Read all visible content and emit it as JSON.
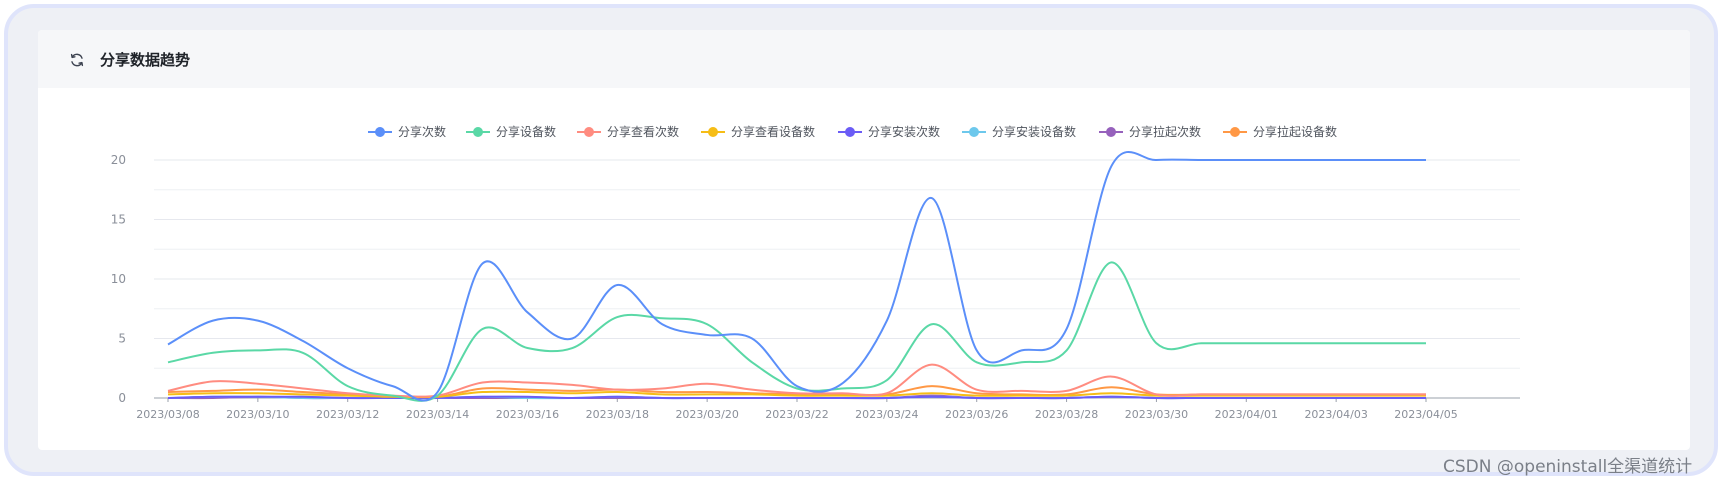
{
  "card": {
    "title": "分享数据趋势",
    "refresh_icon": "refresh-icon"
  },
  "watermark": "CSDN @openinstall全渠道统计",
  "chart_data": {
    "type": "line",
    "title": "分享数据趋势",
    "xlabel": "",
    "ylabel": "",
    "ylim": [
      0,
      20
    ],
    "yticks": [
      0,
      5,
      10,
      15,
      20
    ],
    "grid": true,
    "legend_position": "top-center",
    "x": [
      "2023/03/08",
      "2023/03/09",
      "2023/03/10",
      "2023/03/11",
      "2023/03/12",
      "2023/03/13",
      "2023/03/14",
      "2023/03/15",
      "2023/03/16",
      "2023/03/17",
      "2023/03/18",
      "2023/03/19",
      "2023/03/20",
      "2023/03/21",
      "2023/03/22",
      "2023/03/23",
      "2023/03/24",
      "2023/03/25",
      "2023/03/26",
      "2023/03/27",
      "2023/03/28",
      "2023/03/29",
      "2023/03/30",
      "2023/03/31",
      "2023/04/01",
      "2023/04/02",
      "2023/04/03",
      "2023/04/04",
      "2023/04/05"
    ],
    "x_tick_labels": [
      "2023/03/08",
      "2023/03/10",
      "2023/03/12",
      "2023/03/14",
      "2023/03/16",
      "2023/03/18",
      "2023/03/20",
      "2023/03/22",
      "2023/03/24",
      "2023/03/26",
      "2023/03/28",
      "2023/03/30",
      "2023/04/01",
      "2023/04/03",
      "2023/04/05"
    ],
    "series": [
      {
        "name": "分享次数",
        "color": "#5b8ff9",
        "values": [
          4.5,
          6.5,
          6.5,
          4.8,
          2.5,
          1.0,
          0.5,
          11.3,
          7.2,
          5.0,
          9.5,
          6.2,
          5.3,
          5.0,
          1.0,
          1.2,
          6.5,
          16.8,
          4.0,
          4.0,
          5.8,
          19.5,
          20.0,
          20.0,
          20.0,
          20.0,
          20.0,
          20.0,
          20.0
        ]
      },
      {
        "name": "分享设备数",
        "color": "#5ad8a6",
        "values": [
          3.0,
          3.8,
          4.0,
          3.8,
          1.0,
          0.2,
          0.2,
          5.8,
          4.2,
          4.2,
          6.8,
          6.7,
          6.2,
          3.0,
          0.8,
          0.8,
          1.5,
          6.2,
          3.0,
          3.0,
          4.0,
          11.4,
          4.6,
          4.6,
          4.6,
          4.6,
          4.6,
          4.6,
          4.6
        ]
      },
      {
        "name": "分享查看次数",
        "color": "#ff8c80",
        "values": [
          0.6,
          1.4,
          1.2,
          0.8,
          0.4,
          0.2,
          0.2,
          1.3,
          1.3,
          1.1,
          0.7,
          0.8,
          1.2,
          0.7,
          0.4,
          0.4,
          0.4,
          2.8,
          0.7,
          0.6,
          0.6,
          1.8,
          0.3,
          0.3,
          0.3,
          0.3,
          0.3,
          0.3,
          0.3
        ]
      },
      {
        "name": "分享查看设备数",
        "color": "#f6bd16",
        "values": [
          0.3,
          0.4,
          0.4,
          0.3,
          0.2,
          0.1,
          0.1,
          0.5,
          0.5,
          0.4,
          0.5,
          0.3,
          0.3,
          0.3,
          0.2,
          0.2,
          0.2,
          0.4,
          0.2,
          0.2,
          0.2,
          0.4,
          0.2,
          0.2,
          0.2,
          0.2,
          0.2,
          0.2,
          0.2
        ]
      },
      {
        "name": "分享安装次数",
        "color": "#6b5cf6",
        "values": [
          0.0,
          0.1,
          0.1,
          0.1,
          0.0,
          0.0,
          0.0,
          0.1,
          0.1,
          0.0,
          0.1,
          0.0,
          0.0,
          0.0,
          0.0,
          0.0,
          0.0,
          0.1,
          0.0,
          0.0,
          0.0,
          0.1,
          0.0,
          0.0,
          0.0,
          0.0,
          0.0,
          0.0,
          0.0
        ]
      },
      {
        "name": "分享安装设备数",
        "color": "#6dc8ec",
        "values": [
          0.0,
          0.1,
          0.1,
          0.0,
          0.0,
          0.0,
          0.0,
          0.1,
          0.0,
          0.0,
          0.1,
          0.0,
          0.0,
          0.0,
          0.0,
          0.0,
          0.0,
          0.1,
          0.0,
          0.0,
          0.0,
          0.1,
          0.0,
          0.0,
          0.0,
          0.0,
          0.0,
          0.0,
          0.0
        ]
      },
      {
        "name": "分享拉起次数",
        "color": "#9661bc",
        "values": [
          0.0,
          0.0,
          0.1,
          0.0,
          0.0,
          0.0,
          0.0,
          0.0,
          0.0,
          0.0,
          0.0,
          0.0,
          0.0,
          0.0,
          0.0,
          0.0,
          0.0,
          0.2,
          0.0,
          0.0,
          0.0,
          0.1,
          0.0,
          0.0,
          0.0,
          0.0,
          0.0,
          0.0,
          0.0
        ]
      },
      {
        "name": "分享拉起设备数",
        "color": "#ff9845",
        "values": [
          0.5,
          0.6,
          0.7,
          0.5,
          0.3,
          0.1,
          0.1,
          0.8,
          0.7,
          0.6,
          0.7,
          0.5,
          0.5,
          0.4,
          0.3,
          0.3,
          0.3,
          1.0,
          0.4,
          0.3,
          0.3,
          0.9,
          0.3,
          0.3,
          0.3,
          0.3,
          0.3,
          0.3,
          0.3
        ]
      }
    ]
  }
}
